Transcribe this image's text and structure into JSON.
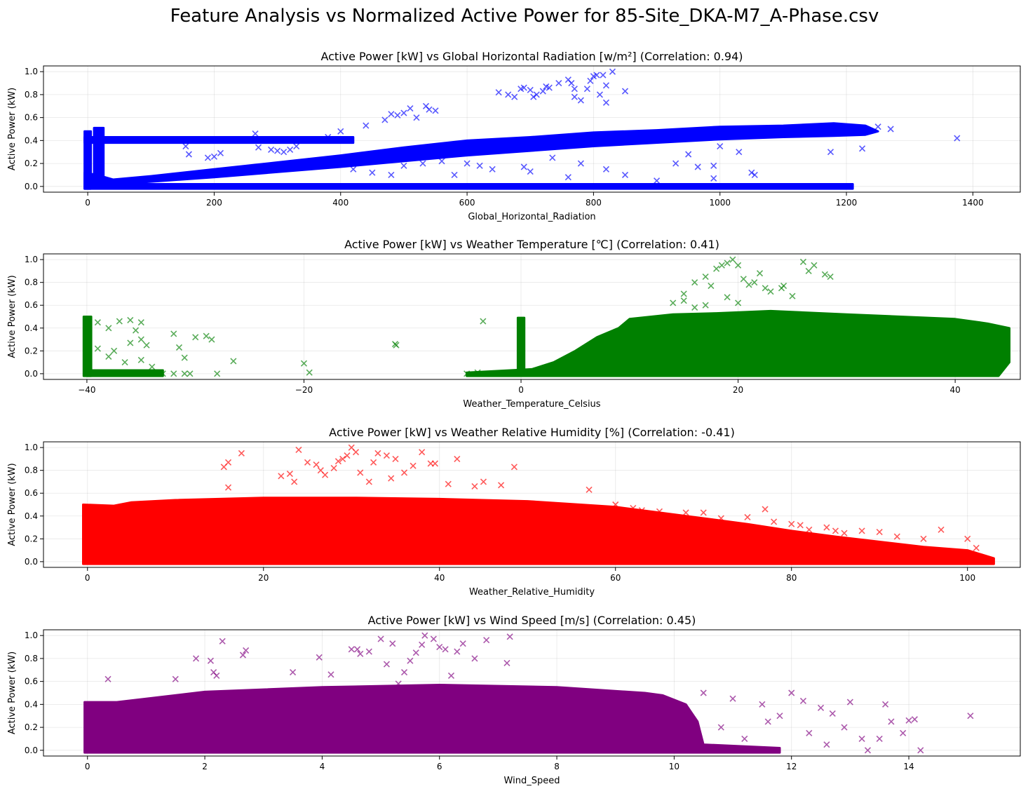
{
  "figure": {
    "suptitle": "Feature Analysis vs Normalized Active Power for 85-Site_DKA-M7_A-Phase.csv"
  },
  "chart_data": [
    {
      "type": "scatter",
      "title": "Active Power [kW] vs Global Horizontal Radiation [w/m²] (Correlation: 0.94)",
      "xlabel": "Global_Horizontal_Radiation",
      "ylabel": "Active Power (kW)",
      "xlim": [
        -70,
        1475
      ],
      "ylim": [
        -0.05,
        1.05
      ],
      "xticks": [
        0,
        200,
        400,
        600,
        800,
        1000,
        1200,
        1400
      ],
      "yticks": [
        0.0,
        0.2,
        0.4,
        0.6,
        0.8,
        1.0
      ],
      "color": "#0000ff",
      "marker": "x",
      "grid": true,
      "correlation": 0.94,
      "points": [
        [
          1375,
          0.42
        ],
        [
          1175,
          0.3
        ],
        [
          1225,
          0.33
        ],
        [
          1270,
          0.5
        ],
        [
          1250,
          0.52
        ],
        [
          1000,
          0.35
        ],
        [
          1030,
          0.3
        ],
        [
          950,
          0.28
        ],
        [
          965,
          0.17
        ],
        [
          930,
          0.2
        ],
        [
          990,
          0.07
        ],
        [
          1050,
          0.12
        ],
        [
          1055,
          0.1
        ],
        [
          990,
          0.18
        ],
        [
          900,
          0.05
        ],
        [
          820,
          0.15
        ],
        [
          850,
          0.1
        ],
        [
          760,
          0.08
        ],
        [
          780,
          0.2
        ],
        [
          735,
          0.25
        ],
        [
          700,
          0.13
        ],
        [
          690,
          0.17
        ],
        [
          640,
          0.15
        ],
        [
          820,
          0.73
        ],
        [
          760,
          0.93
        ],
        [
          765,
          0.9
        ],
        [
          770,
          0.85
        ],
        [
          745,
          0.9
        ],
        [
          800,
          0.96
        ],
        [
          805,
          0.97
        ],
        [
          790,
          0.85
        ],
        [
          780,
          0.75
        ],
        [
          815,
          0.97
        ],
        [
          830,
          1.0
        ],
        [
          795,
          0.92
        ],
        [
          770,
          0.78
        ],
        [
          810,
          0.8
        ],
        [
          850,
          0.83
        ],
        [
          820,
          0.88
        ],
        [
          650,
          0.82
        ],
        [
          665,
          0.8
        ],
        [
          675,
          0.78
        ],
        [
          685,
          0.85
        ],
        [
          690,
          0.86
        ],
        [
          700,
          0.84
        ],
        [
          705,
          0.78
        ],
        [
          710,
          0.8
        ],
        [
          725,
          0.87
        ],
        [
          730,
          0.86
        ],
        [
          720,
          0.83
        ],
        [
          535,
          0.7
        ],
        [
          540,
          0.67
        ],
        [
          550,
          0.66
        ],
        [
          510,
          0.68
        ],
        [
          520,
          0.6
        ],
        [
          490,
          0.62
        ],
        [
          480,
          0.63
        ],
        [
          500,
          0.64
        ],
        [
          470,
          0.58
        ],
        [
          440,
          0.53
        ],
        [
          400,
          0.48
        ],
        [
          380,
          0.43
        ],
        [
          350,
          0.4
        ],
        [
          330,
          0.35
        ],
        [
          300,
          0.31
        ],
        [
          290,
          0.32
        ],
        [
          270,
          0.34
        ],
        [
          265,
          0.46
        ],
        [
          240,
          0.4
        ],
        [
          210,
          0.29
        ],
        [
          200,
          0.26
        ],
        [
          190,
          0.25
        ],
        [
          160,
          0.28
        ],
        [
          155,
          0.35
        ],
        [
          310,
          0.3
        ],
        [
          320,
          0.32
        ],
        [
          420,
          0.15
        ],
        [
          450,
          0.12
        ],
        [
          480,
          0.1
        ],
        [
          500,
          0.18
        ],
        [
          530,
          0.2
        ],
        [
          560,
          0.22
        ],
        [
          600,
          0.2
        ],
        [
          620,
          0.18
        ],
        [
          580,
          0.1
        ]
      ]
    },
    {
      "type": "scatter",
      "title": "Active Power [kW] vs Weather Temperature [℃] (Correlation: 0.41)",
      "xlabel": "Weather_Temperature_Celsius",
      "ylabel": "Active Power (kW)",
      "xlim": [
        -44,
        46
      ],
      "ylim": [
        -0.05,
        1.05
      ],
      "xticks": [
        -40,
        -20,
        0,
        20,
        40
      ],
      "yticks": [
        0.0,
        0.2,
        0.4,
        0.6,
        0.8,
        1.0
      ],
      "color": "#008000",
      "marker": "x",
      "grid": true,
      "correlation": 0.41,
      "points": [
        [
          -40,
          0.48
        ],
        [
          -39,
          0.45
        ],
        [
          -38,
          0.4
        ],
        [
          -37,
          0.46
        ],
        [
          -36,
          0.47
        ],
        [
          -35,
          0.45
        ],
        [
          -35.5,
          0.38
        ],
        [
          -35,
          0.3
        ],
        [
          -34.5,
          0.25
        ],
        [
          -36,
          0.27
        ],
        [
          -37.5,
          0.2
        ],
        [
          -39,
          0.22
        ],
        [
          -38,
          0.15
        ],
        [
          -36.5,
          0.1
        ],
        [
          -35,
          0.12
        ],
        [
          -34,
          0.06
        ],
        [
          -33,
          0.0
        ],
        [
          -32,
          0.35
        ],
        [
          -31.5,
          0.23
        ],
        [
          -31,
          0.14
        ],
        [
          -30,
          0.32
        ],
        [
          -29,
          0.33
        ],
        [
          -28.5,
          0.3
        ],
        [
          -28,
          0.0
        ],
        [
          -26.5,
          0.11
        ],
        [
          -32,
          0.0
        ],
        [
          -31,
          0.0
        ],
        [
          -30.5,
          0.0
        ],
        [
          -20,
          0.09
        ],
        [
          -19.5,
          0.01
        ],
        [
          -11.5,
          0.25
        ],
        [
          -11.6,
          0.26
        ],
        [
          -3.5,
          0.46
        ],
        [
          -5,
          0.0
        ],
        [
          -4,
          0.01
        ],
        [
          14,
          0.62
        ],
        [
          15,
          0.7
        ],
        [
          16,
          0.8
        ],
        [
          17,
          0.85
        ],
        [
          17.5,
          0.77
        ],
        [
          18,
          0.92
        ],
        [
          18.5,
          0.95
        ],
        [
          19,
          0.97
        ],
        [
          19.5,
          1.0
        ],
        [
          20,
          0.95
        ],
        [
          20.5,
          0.83
        ],
        [
          21,
          0.78
        ],
        [
          21.5,
          0.8
        ],
        [
          22,
          0.88
        ],
        [
          22.5,
          0.75
        ],
        [
          23,
          0.72
        ],
        [
          24,
          0.75
        ],
        [
          24.2,
          0.77
        ],
        [
          25,
          0.68
        ],
        [
          26,
          0.98
        ],
        [
          26.5,
          0.9
        ],
        [
          27,
          0.95
        ],
        [
          28,
          0.87
        ],
        [
          28.5,
          0.85
        ],
        [
          19,
          0.67
        ],
        [
          20,
          0.62
        ],
        [
          17,
          0.6
        ],
        [
          16,
          0.58
        ],
        [
          15,
          0.64
        ]
      ]
    },
    {
      "type": "scatter",
      "title": "Active Power [kW] vs Weather Relative Humidity [%] (Correlation: -0.41)",
      "xlabel": "Weather_Relative_Humidity",
      "ylabel": "Active Power (kW)",
      "xlim": [
        -5,
        106
      ],
      "ylim": [
        -0.05,
        1.05
      ],
      "xticks": [
        0,
        20,
        40,
        60,
        80,
        100
      ],
      "yticks": [
        0.0,
        0.2,
        0.4,
        0.6,
        0.8,
        1.0
      ],
      "color": "#ff0000",
      "marker": "x",
      "grid": true,
      "correlation": -0.41,
      "points": [
        [
          15.5,
          0.83
        ],
        [
          16,
          0.87
        ],
        [
          16,
          0.65
        ],
        [
          17.5,
          0.95
        ],
        [
          22,
          0.75
        ],
        [
          23,
          0.77
        ],
        [
          23.5,
          0.7
        ],
        [
          24,
          0.98
        ],
        [
          25,
          0.87
        ],
        [
          26,
          0.85
        ],
        [
          26.5,
          0.8
        ],
        [
          27,
          0.76
        ],
        [
          28,
          0.82
        ],
        [
          28.5,
          0.88
        ],
        [
          29,
          0.9
        ],
        [
          29.5,
          0.93
        ],
        [
          30,
          1.0
        ],
        [
          30.5,
          0.96
        ],
        [
          31,
          0.78
        ],
        [
          32,
          0.7
        ],
        [
          32.5,
          0.87
        ],
        [
          33,
          0.95
        ],
        [
          34,
          0.93
        ],
        [
          34.5,
          0.73
        ],
        [
          35,
          0.9
        ],
        [
          36,
          0.78
        ],
        [
          37,
          0.84
        ],
        [
          38,
          0.96
        ],
        [
          39,
          0.86
        ],
        [
          39.5,
          0.86
        ],
        [
          41,
          0.68
        ],
        [
          42,
          0.9
        ],
        [
          44,
          0.66
        ],
        [
          45,
          0.7
        ],
        [
          47,
          0.67
        ],
        [
          48.5,
          0.83
        ],
        [
          57,
          0.63
        ],
        [
          60,
          0.5
        ],
        [
          62,
          0.47
        ],
        [
          63,
          0.45
        ],
        [
          65,
          0.44
        ],
        [
          68,
          0.43
        ],
        [
          70,
          0.43
        ],
        [
          72,
          0.38
        ],
        [
          75,
          0.39
        ],
        [
          77,
          0.46
        ],
        [
          78,
          0.35
        ],
        [
          80,
          0.33
        ],
        [
          81,
          0.32
        ],
        [
          82,
          0.28
        ],
        [
          84,
          0.3
        ],
        [
          85,
          0.27
        ],
        [
          86,
          0.25
        ],
        [
          88,
          0.27
        ],
        [
          90,
          0.26
        ],
        [
          92,
          0.22
        ],
        [
          95,
          0.2
        ],
        [
          97,
          0.28
        ],
        [
          100,
          0.2
        ],
        [
          101,
          0.12
        ]
      ]
    },
    {
      "type": "scatter",
      "title": "Active Power [kW] vs Wind Speed [m/s] (Correlation: 0.45)",
      "xlabel": "Wind_Speed",
      "ylabel": "Active Power (kW)",
      "xlim": [
        -0.75,
        15.9
      ],
      "ylim": [
        -0.05,
        1.05
      ],
      "xticks": [
        0,
        2,
        4,
        6,
        8,
        10,
        12,
        14
      ],
      "yticks": [
        0.0,
        0.2,
        0.4,
        0.6,
        0.8,
        1.0
      ],
      "color": "#800080",
      "marker": "x",
      "grid": true,
      "correlation": 0.45,
      "points": [
        [
          0.35,
          0.62
        ],
        [
          1.5,
          0.62
        ],
        [
          1.85,
          0.8
        ],
        [
          2.1,
          0.78
        ],
        [
          2.15,
          0.68
        ],
        [
          2.2,
          0.65
        ],
        [
          2.3,
          0.95
        ],
        [
          2.65,
          0.83
        ],
        [
          2.7,
          0.87
        ],
        [
          3.5,
          0.68
        ],
        [
          3.95,
          0.81
        ],
        [
          4.15,
          0.66
        ],
        [
          4.5,
          0.88
        ],
        [
          4.6,
          0.88
        ],
        [
          4.65,
          0.84
        ],
        [
          4.8,
          0.86
        ],
        [
          5.0,
          0.97
        ],
        [
          5.1,
          0.75
        ],
        [
          5.2,
          0.93
        ],
        [
          5.3,
          0.58
        ],
        [
          5.4,
          0.68
        ],
        [
          5.5,
          0.78
        ],
        [
          5.6,
          0.85
        ],
        [
          5.7,
          0.92
        ],
        [
          5.75,
          1.0
        ],
        [
          5.9,
          0.97
        ],
        [
          6.0,
          0.9
        ],
        [
          6.1,
          0.88
        ],
        [
          6.2,
          0.65
        ],
        [
          6.3,
          0.86
        ],
        [
          6.4,
          0.93
        ],
        [
          6.6,
          0.8
        ],
        [
          6.8,
          0.96
        ],
        [
          7.2,
          0.99
        ],
        [
          7.15,
          0.76
        ],
        [
          10.5,
          0.5
        ],
        [
          11,
          0.45
        ],
        [
          11.5,
          0.4
        ],
        [
          11.8,
          0.3
        ],
        [
          12,
          0.5
        ],
        [
          12.2,
          0.43
        ],
        [
          12.5,
          0.37
        ],
        [
          12.7,
          0.32
        ],
        [
          12.9,
          0.2
        ],
        [
          13,
          0.42
        ],
        [
          13.2,
          0.1
        ],
        [
          13.3,
          0.0
        ],
        [
          13.5,
          0.1
        ],
        [
          13.6,
          0.4
        ],
        [
          13.7,
          0.25
        ],
        [
          13.9,
          0.15
        ],
        [
          14,
          0.26
        ],
        [
          14.1,
          0.27
        ],
        [
          14.2,
          0.0
        ],
        [
          15.05,
          0.3
        ],
        [
          10.8,
          0.2
        ],
        [
          11.2,
          0.1
        ],
        [
          11.6,
          0.25
        ],
        [
          12.3,
          0.15
        ],
        [
          12.6,
          0.05
        ],
        [
          10.2,
          0.35
        ]
      ]
    }
  ]
}
